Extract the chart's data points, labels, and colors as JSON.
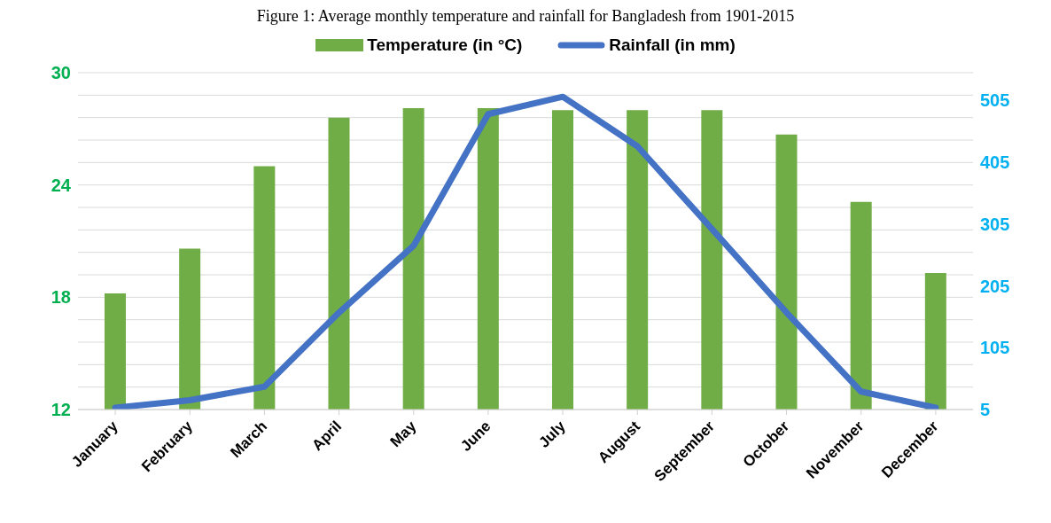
{
  "chart_data": {
    "type": "bar",
    "title": "Figure 1: Average monthly temperature and rainfall for Bangladesh from 1901-2015",
    "categories": [
      "January",
      "February",
      "March",
      "April",
      "May",
      "June",
      "July",
      "August",
      "September",
      "October",
      "November",
      "December"
    ],
    "series": [
      {
        "name": "Temperature (in °C)",
        "color": "#70ad47",
        "values": [
          18.2,
          20.6,
          25.0,
          27.6,
          28.1,
          28.1,
          28.0,
          28.0,
          28.0,
          26.7,
          23.1,
          19.3
        ]
      },
      {
        "name": "Rainfall (in mm)",
        "type": "line",
        "axis": "y2",
        "color": "#4472c4",
        "values": [
          8,
          20,
          42,
          162,
          270,
          483,
          511,
          431,
          297,
          162,
          34,
          8
        ]
      }
    ],
    "ylim": [
      12,
      30
    ],
    "yticks": [
      12,
      {
        "value": 13.2,
        "label": null
      },
      {
        "value": 14.4,
        "label": null
      },
      {
        "value": 15.6,
        "label": null
      },
      {
        "value": 16.8,
        "label": null
      },
      18,
      {
        "value": 19.2,
        "label": null
      },
      {
        "value": 20.4,
        "label": null
      },
      {
        "value": 21.6,
        "label": null
      },
      {
        "value": 22.8,
        "label": null
      },
      24,
      {
        "value": 25.2,
        "label": null
      },
      {
        "value": 26.4,
        "label": null
      },
      {
        "value": 27.6,
        "label": null
      },
      {
        "value": 28.8,
        "label": null
      },
      30
    ],
    "y2lim": [
      5,
      550
    ],
    "y2ticks": [
      5,
      105,
      205,
      305,
      405,
      505
    ],
    "grid": "y",
    "legend": "top",
    "marker": "none",
    "line_style": "solid"
  }
}
